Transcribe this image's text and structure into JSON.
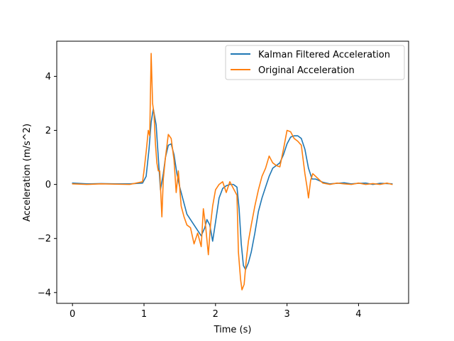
{
  "chart_data": {
    "type": "line",
    "title": "",
    "xlabel": "Time (s)",
    "ylabel": "Acceleration (m/s^2)",
    "xlim": [
      -0.22,
      4.7
    ],
    "ylim": [
      -4.4,
      5.3
    ],
    "xticks": [
      0,
      1,
      2,
      3,
      4
    ],
    "yticks": [
      -4,
      -2,
      0,
      2,
      4
    ],
    "grid": false,
    "legend_position": "top-right",
    "series": [
      {
        "name": "Kalman Filtered Acceleration",
        "color": "#1f77b4",
        "x": [
          0,
          0.2,
          0.4,
          0.6,
          0.8,
          0.98,
          1.03,
          1.07,
          1.1,
          1.13,
          1.17,
          1.2,
          1.23,
          1.27,
          1.3,
          1.34,
          1.38,
          1.42,
          1.46,
          1.5,
          1.55,
          1.6,
          1.65,
          1.7,
          1.75,
          1.8,
          1.85,
          1.88,
          1.92,
          1.96,
          2.0,
          2.05,
          2.1,
          2.15,
          2.2,
          2.25,
          2.3,
          2.33,
          2.36,
          2.39,
          2.42,
          2.46,
          2.5,
          2.55,
          2.6,
          2.65,
          2.7,
          2.75,
          2.8,
          2.85,
          2.9,
          2.95,
          3.0,
          3.05,
          3.1,
          3.15,
          3.2,
          3.25,
          3.3,
          3.35,
          3.4,
          3.5,
          3.6,
          3.7,
          3.8,
          3.9,
          4.0,
          4.1,
          4.2,
          4.3,
          4.4,
          4.47
        ],
        "values": [
          0.05,
          0.02,
          0.03,
          0.02,
          0.02,
          0.05,
          0.3,
          1.3,
          2.3,
          2.8,
          2.2,
          1.0,
          -0.2,
          0.4,
          1.0,
          1.45,
          1.5,
          1.1,
          0.4,
          -0.1,
          -0.6,
          -1.1,
          -1.3,
          -1.5,
          -1.7,
          -1.9,
          -1.6,
          -1.3,
          -1.5,
          -2.1,
          -1.4,
          -0.5,
          -0.15,
          -0.05,
          0.0,
          0.0,
          -0.1,
          -0.9,
          -2.2,
          -3.0,
          -3.15,
          -2.9,
          -2.5,
          -1.8,
          -1.0,
          -0.5,
          -0.1,
          0.3,
          0.6,
          0.7,
          0.8,
          1.1,
          1.5,
          1.75,
          1.8,
          1.8,
          1.7,
          1.3,
          0.6,
          0.2,
          0.2,
          0.08,
          0.02,
          0.04,
          0.06,
          0.02,
          0.04,
          0.05,
          0.0,
          0.04,
          0.03,
          0.02
        ]
      },
      {
        "name": "Original Acceleration",
        "color": "#ff7f0e",
        "x": [
          0,
          0.2,
          0.4,
          0.6,
          0.8,
          0.98,
          1.0,
          1.03,
          1.06,
          1.08,
          1.1,
          1.12,
          1.14,
          1.16,
          1.18,
          1.2,
          1.22,
          1.25,
          1.27,
          1.3,
          1.34,
          1.38,
          1.42,
          1.45,
          1.48,
          1.52,
          1.56,
          1.6,
          1.65,
          1.7,
          1.75,
          1.8,
          1.83,
          1.86,
          1.9,
          1.93,
          1.96,
          2.0,
          2.05,
          2.1,
          2.15,
          2.2,
          2.25,
          2.3,
          2.32,
          2.35,
          2.37,
          2.4,
          2.43,
          2.46,
          2.5,
          2.55,
          2.6,
          2.65,
          2.7,
          2.75,
          2.8,
          2.85,
          2.9,
          2.95,
          3.0,
          3.05,
          3.1,
          3.15,
          3.2,
          3.25,
          3.28,
          3.3,
          3.33,
          3.36,
          3.4,
          3.5,
          3.6,
          3.7,
          3.8,
          3.9,
          4.0,
          4.1,
          4.2,
          4.3,
          4.4,
          4.47
        ],
        "values": [
          0.02,
          0.0,
          0.02,
          0.01,
          0.0,
          0.1,
          0.5,
          1.2,
          2.0,
          1.8,
          4.85,
          3.0,
          2.6,
          1.5,
          0.8,
          0.5,
          0.5,
          -1.2,
          0.2,
          1.0,
          1.85,
          1.7,
          0.9,
          -0.3,
          0.5,
          -0.8,
          -1.2,
          -1.5,
          -1.6,
          -2.2,
          -1.8,
          -2.3,
          -0.9,
          -1.5,
          -2.6,
          -1.5,
          -0.8,
          -0.2,
          0.0,
          0.1,
          -0.3,
          0.1,
          -0.15,
          -0.4,
          -2.5,
          -3.5,
          -3.9,
          -3.7,
          -2.8,
          -2.1,
          -1.5,
          -0.8,
          -0.2,
          0.3,
          0.6,
          1.05,
          0.8,
          0.7,
          0.65,
          1.3,
          2.0,
          1.95,
          1.7,
          1.6,
          1.45,
          0.4,
          -0.1,
          -0.5,
          0.15,
          0.4,
          0.3,
          0.05,
          0.0,
          0.05,
          0.02,
          0.0,
          0.05,
          0.0,
          0.03,
          0.0,
          0.05,
          0.0
        ]
      }
    ]
  }
}
